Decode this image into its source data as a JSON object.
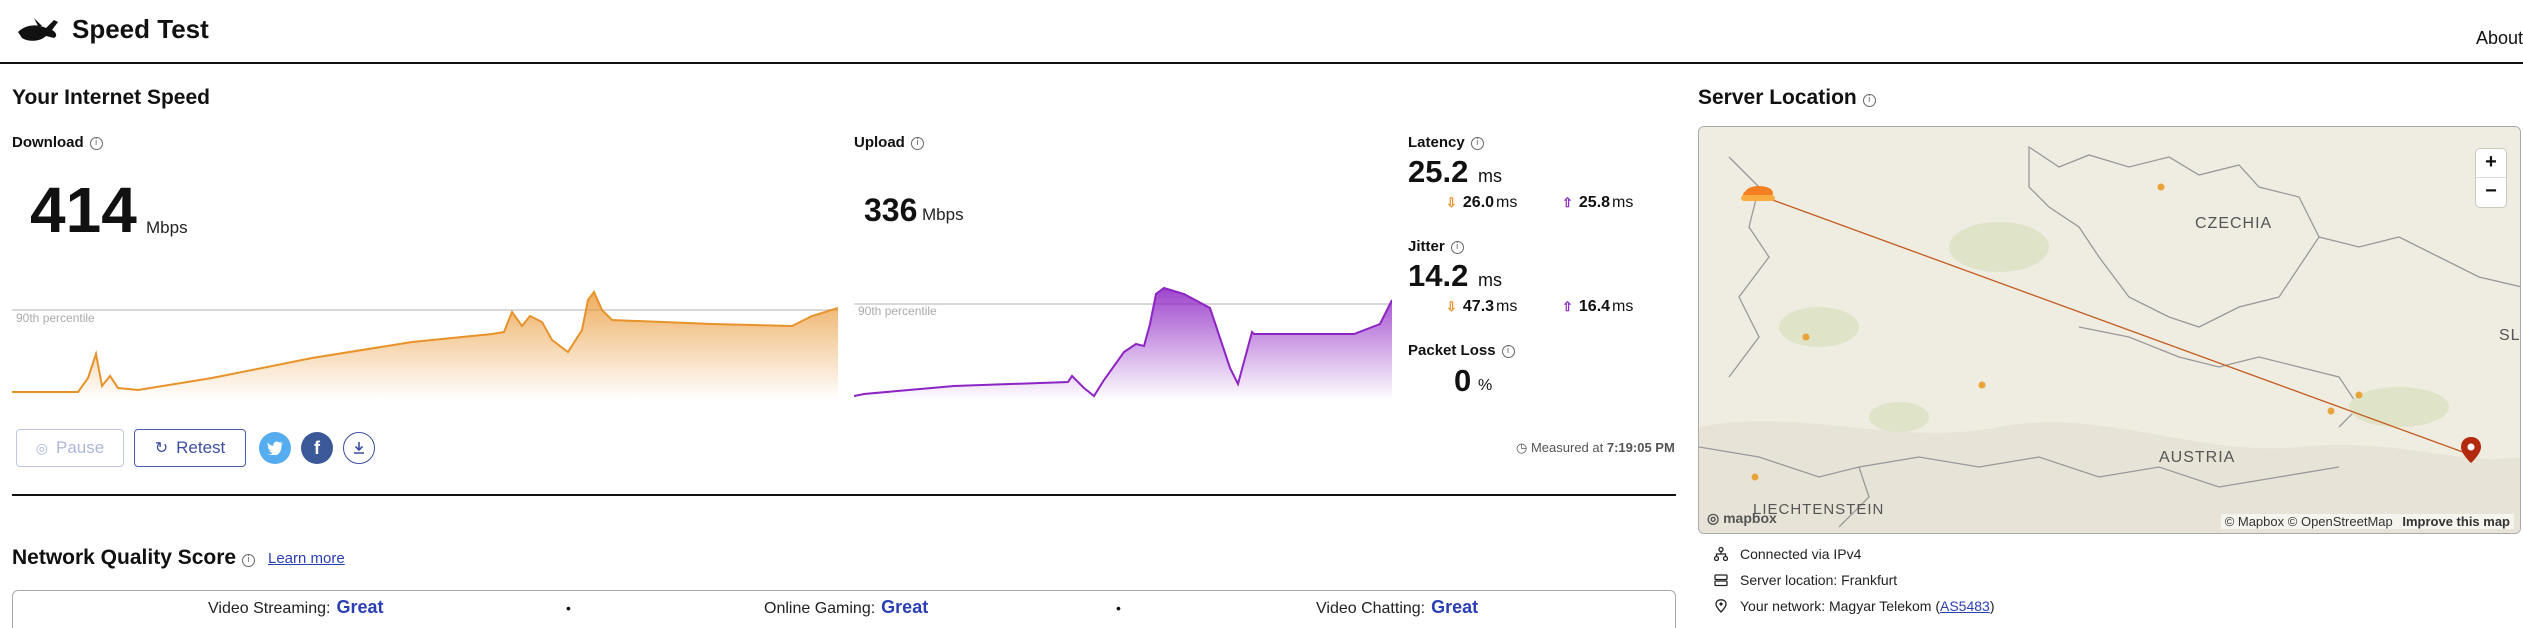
{
  "header": {
    "title": "Speed Test",
    "about": "About"
  },
  "speed": {
    "title": "Your Internet Speed",
    "download": {
      "label": "Download",
      "value": "414",
      "unit": "Mbps",
      "percentile": "90th percentile"
    },
    "upload": {
      "label": "Upload",
      "value": "336",
      "unit": "Mbps",
      "percentile": "90th percentile"
    },
    "latency": {
      "label": "Latency",
      "value": "25.2",
      "unit": "ms",
      "down": "26.0",
      "up": "25.8",
      "sub_unit": "ms"
    },
    "jitter": {
      "label": "Jitter",
      "value": "14.2",
      "unit": "ms",
      "down": "47.3",
      "up": "16.4",
      "sub_unit": "ms"
    },
    "packet_loss": {
      "label": "Packet Loss",
      "value": "0",
      "unit": "%"
    },
    "buttons": {
      "pause": "Pause",
      "retest": "Retest"
    },
    "measured_prefix": "Measured at",
    "measured_time": "7:19:05 PM"
  },
  "quality": {
    "title": "Network Quality Score",
    "learn_more": "Learn more",
    "items": [
      {
        "label": "Video Streaming:",
        "value": "Great"
      },
      {
        "label": "Online Gaming:",
        "value": "Great"
      },
      {
        "label": "Video Chatting:",
        "value": "Great"
      }
    ]
  },
  "server": {
    "title": "Server Location",
    "map_labels": {
      "czechia": "CZECHIA",
      "austria": "AUSTRIA",
      "liechtenstein": "LIECHTENSTEIN",
      "slovakia_partial": "SL"
    },
    "attribution": {
      "mapbox": "© Mapbox",
      "osm": "© OpenStreetMap",
      "improve": "Improve this map",
      "logo": "mapbox"
    },
    "connected": "Connected via IPv4",
    "location": "Server location: Frankfurt",
    "network_prefix": "Your network: Magyar Telekom (",
    "asn": "AS5483",
    "network_suffix": ")"
  },
  "colors": {
    "download": "#e8922a",
    "upload": "#8d24c4",
    "accent": "#2b3fb5"
  }
}
